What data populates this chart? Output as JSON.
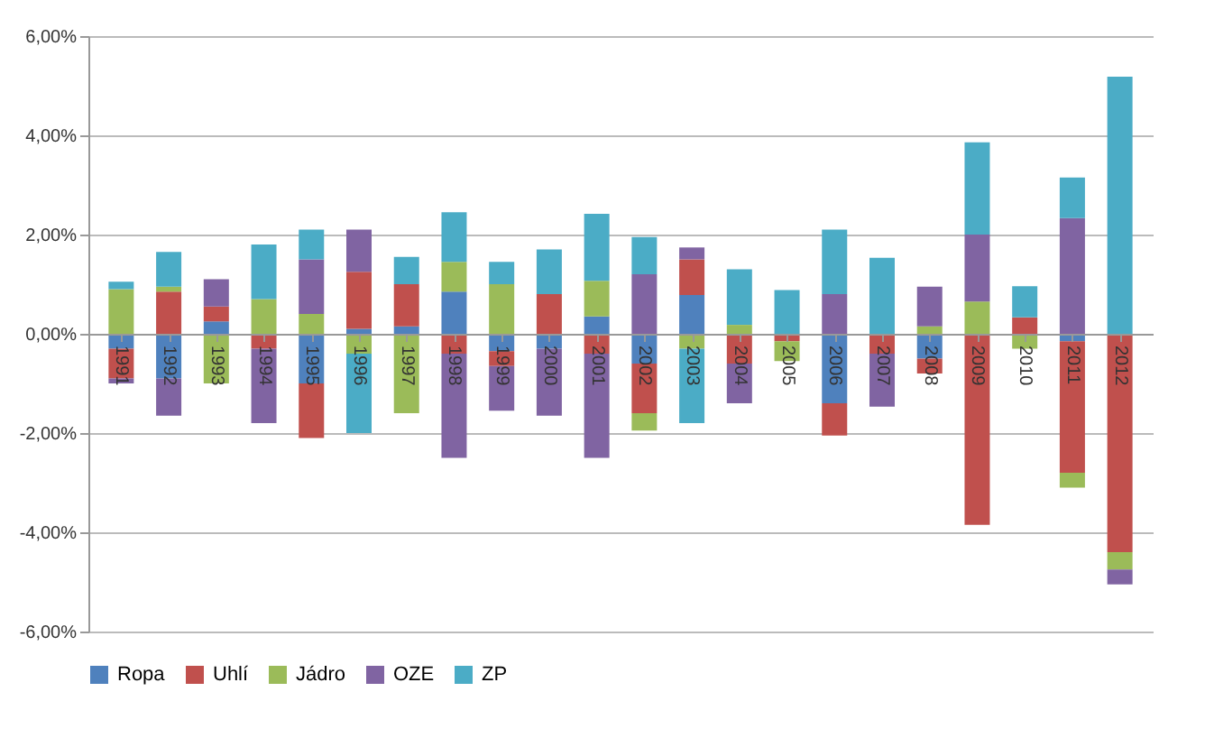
{
  "chart_data": {
    "type": "bar",
    "stacked": true,
    "categories": [
      "1991",
      "1992",
      "1993",
      "1994",
      "1995",
      "1996",
      "1997",
      "1998",
      "1999",
      "2000",
      "2001",
      "2002",
      "2003",
      "2004",
      "2005",
      "2006",
      "2007",
      "2008",
      "2009",
      "2010",
      "2011",
      "2012"
    ],
    "series": [
      {
        "name": "Ropa",
        "color": "#4f81bd",
        "values": [
          -0.3,
          -0.9,
          0.25,
          null,
          -1.0,
          0.1,
          0.15,
          0.85,
          -0.35,
          -0.3,
          0.35,
          -0.6,
          0.78,
          null,
          null,
          -1.4,
          null,
          -0.5,
          null,
          null,
          -0.15,
          null
        ]
      },
      {
        "name": "Uhlí",
        "color": "#c0504d",
        "values": [
          -0.6,
          0.85,
          0.3,
          -0.3,
          -1.1,
          1.15,
          0.85,
          -0.4,
          -0.3,
          0.8,
          -0.4,
          -1.0,
          0.72,
          -0.6,
          -0.15,
          -0.65,
          -0.4,
          -0.3,
          -3.85,
          0.33,
          -2.65,
          -4.4
        ]
      },
      {
        "name": "Jádro",
        "color": "#9bbb59",
        "values": [
          0.9,
          0.1,
          -1.0,
          0.7,
          0.4,
          -0.4,
          -1.6,
          0.6,
          1.0,
          null,
          0.72,
          -0.35,
          -0.3,
          0.18,
          -0.4,
          null,
          null,
          0.15,
          0.65,
          -0.3,
          -0.3,
          -0.35
        ]
      },
      {
        "name": "OZE",
        "color": "#8064a2",
        "values": [
          -0.1,
          -0.75,
          0.55,
          -1.5,
          1.1,
          0.85,
          null,
          -2.1,
          -0.9,
          -1.35,
          -2.1,
          1.2,
          0.24,
          -0.8,
          null,
          0.8,
          -1.07,
          0.8,
          1.35,
          null,
          2.33,
          -0.3
        ]
      },
      {
        "name": "ZP",
        "color": "#4bacc6",
        "values": [
          0.15,
          0.7,
          null,
          1.1,
          0.6,
          -1.6,
          0.55,
          1.0,
          0.45,
          0.9,
          1.35,
          0.75,
          -1.5,
          1.12,
          0.88,
          1.3,
          1.53,
          null,
          1.86,
          0.63,
          0.82,
          5.18
        ]
      }
    ],
    "ylim": [
      -6,
      6
    ],
    "yticks": [
      {
        "value": -6,
        "label": "-6,00%"
      },
      {
        "value": -4,
        "label": "-4,00%"
      },
      {
        "value": -2,
        "label": "-2,00%"
      },
      {
        "value": 0,
        "label": "0,00%"
      },
      {
        "value": 2,
        "label": "2,00%"
      },
      {
        "value": 4,
        "label": "4,00%"
      },
      {
        "value": 6,
        "label": "6,00%"
      }
    ],
    "grid": "y",
    "legend": "bottom"
  }
}
